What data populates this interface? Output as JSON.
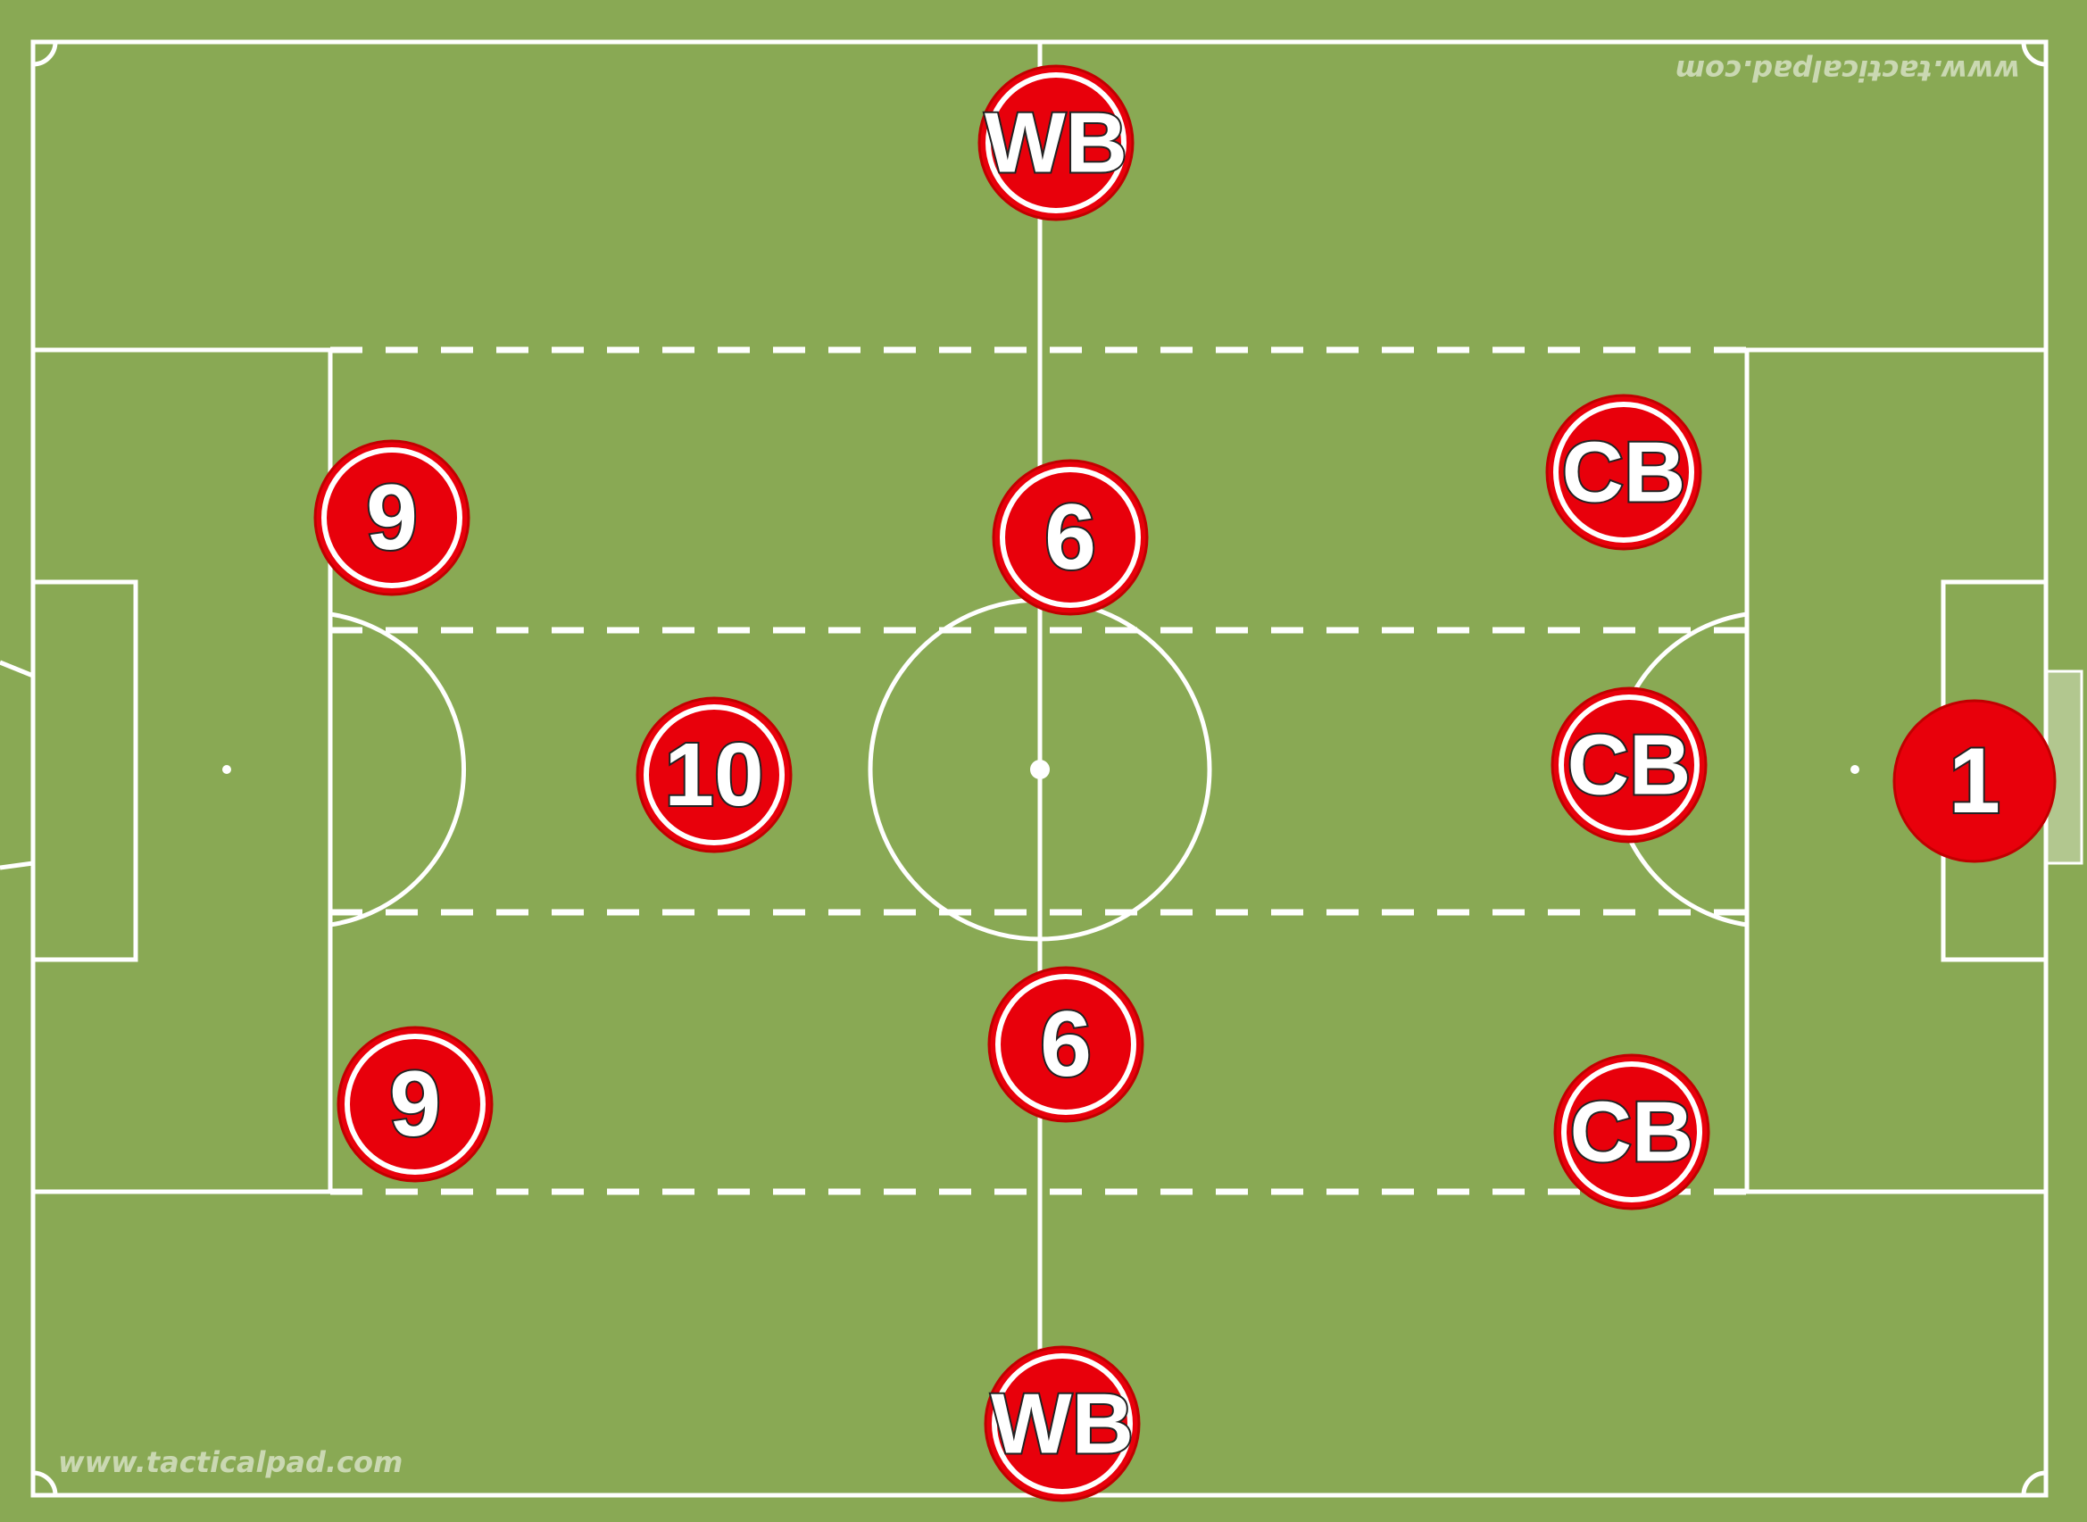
{
  "pitch": {
    "background_color": "#89a954",
    "line_color": "#ffffff",
    "watermark_bottom": "www.tacticalpad.com",
    "watermark_top": "www.tacticalpad.com"
  },
  "player_color": "#e8000b",
  "players": [
    {
      "id": "wb-top",
      "label": "WB"
    },
    {
      "id": "cb-top",
      "label": "CB"
    },
    {
      "id": "nine-top",
      "label": "9"
    },
    {
      "id": "six-top",
      "label": "6"
    },
    {
      "id": "ten",
      "label": "10"
    },
    {
      "id": "cb-middle",
      "label": "CB"
    },
    {
      "id": "goalkeeper",
      "label": "1"
    },
    {
      "id": "six-bottom",
      "label": "6"
    },
    {
      "id": "nine-bottom",
      "label": "9"
    },
    {
      "id": "cb-bottom",
      "label": "CB"
    },
    {
      "id": "wb-bottom",
      "label": "WB"
    }
  ]
}
